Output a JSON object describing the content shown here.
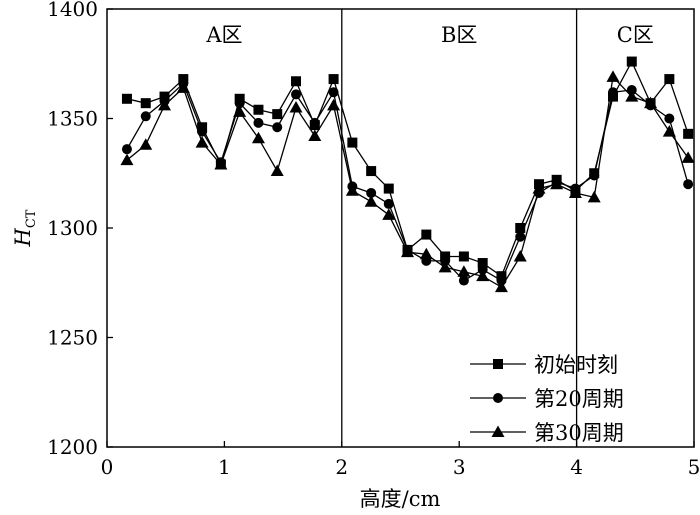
{
  "chart_data": {
    "type": "line",
    "xlabel": "高度/cm",
    "ylabel": "H",
    "ylabel_sub": "CT",
    "xlim": [
      0,
      5
    ],
    "ylim": [
      1200,
      1400
    ],
    "xticks": [
      0,
      1,
      2,
      3,
      4,
      5
    ],
    "yticks": [
      1200,
      1250,
      1300,
      1350,
      1400
    ],
    "grid": false,
    "legend_position": "bottom-right",
    "regions": [
      {
        "label": "A区",
        "from": 0,
        "to": 2
      },
      {
        "label": "B区",
        "from": 2,
        "to": 4
      },
      {
        "label": "C区",
        "from": 4,
        "to": 5
      }
    ],
    "region_dividers": [
      2,
      4
    ],
    "x": [
      0.17,
      0.33,
      0.49,
      0.65,
      0.81,
      0.97,
      1.13,
      1.29,
      1.45,
      1.61,
      1.77,
      1.93,
      2.09,
      2.25,
      2.4,
      2.56,
      2.72,
      2.88,
      3.04,
      3.2,
      3.36,
      3.52,
      3.68,
      3.83,
      3.99,
      4.15,
      4.31,
      4.47,
      4.63,
      4.79,
      4.95
    ],
    "series": [
      {
        "name": "初始时刻",
        "marker": "square",
        "values": [
          1359,
          1357,
          1360,
          1368,
          1346,
          1329,
          1359,
          1354,
          1352,
          1367,
          1347,
          1368,
          1339,
          1326,
          1318,
          1290,
          1297,
          1287,
          1287,
          1284,
          1278,
          1300,
          1320,
          1322,
          1317,
          1325,
          1360,
          1376,
          1357,
          1368,
          1343
        ]
      },
      {
        "name": "第20周期",
        "marker": "circle",
        "values": [
          1336,
          1351,
          1358,
          1366,
          1344,
          1330,
          1357,
          1348,
          1346,
          1361,
          1348,
          1362,
          1319,
          1316,
          1311,
          1290,
          1285,
          1285,
          1276,
          1281,
          1276,
          1296,
          1316,
          1321,
          1318,
          1324,
          1362,
          1363,
          1356,
          1350,
          1320
        ]
      },
      {
        "name": "第30周期",
        "marker": "triangle",
        "values": [
          1331,
          1338,
          1356,
          1364,
          1339,
          1329,
          1353,
          1341,
          1326,
          1355,
          1342,
          1356,
          1317,
          1312,
          1306,
          1289,
          1288,
          1282,
          1280,
          1278,
          1273,
          1287,
          1318,
          1320,
          1316,
          1314,
          1369,
          1360,
          1357,
          1344,
          1332
        ]
      }
    ]
  }
}
